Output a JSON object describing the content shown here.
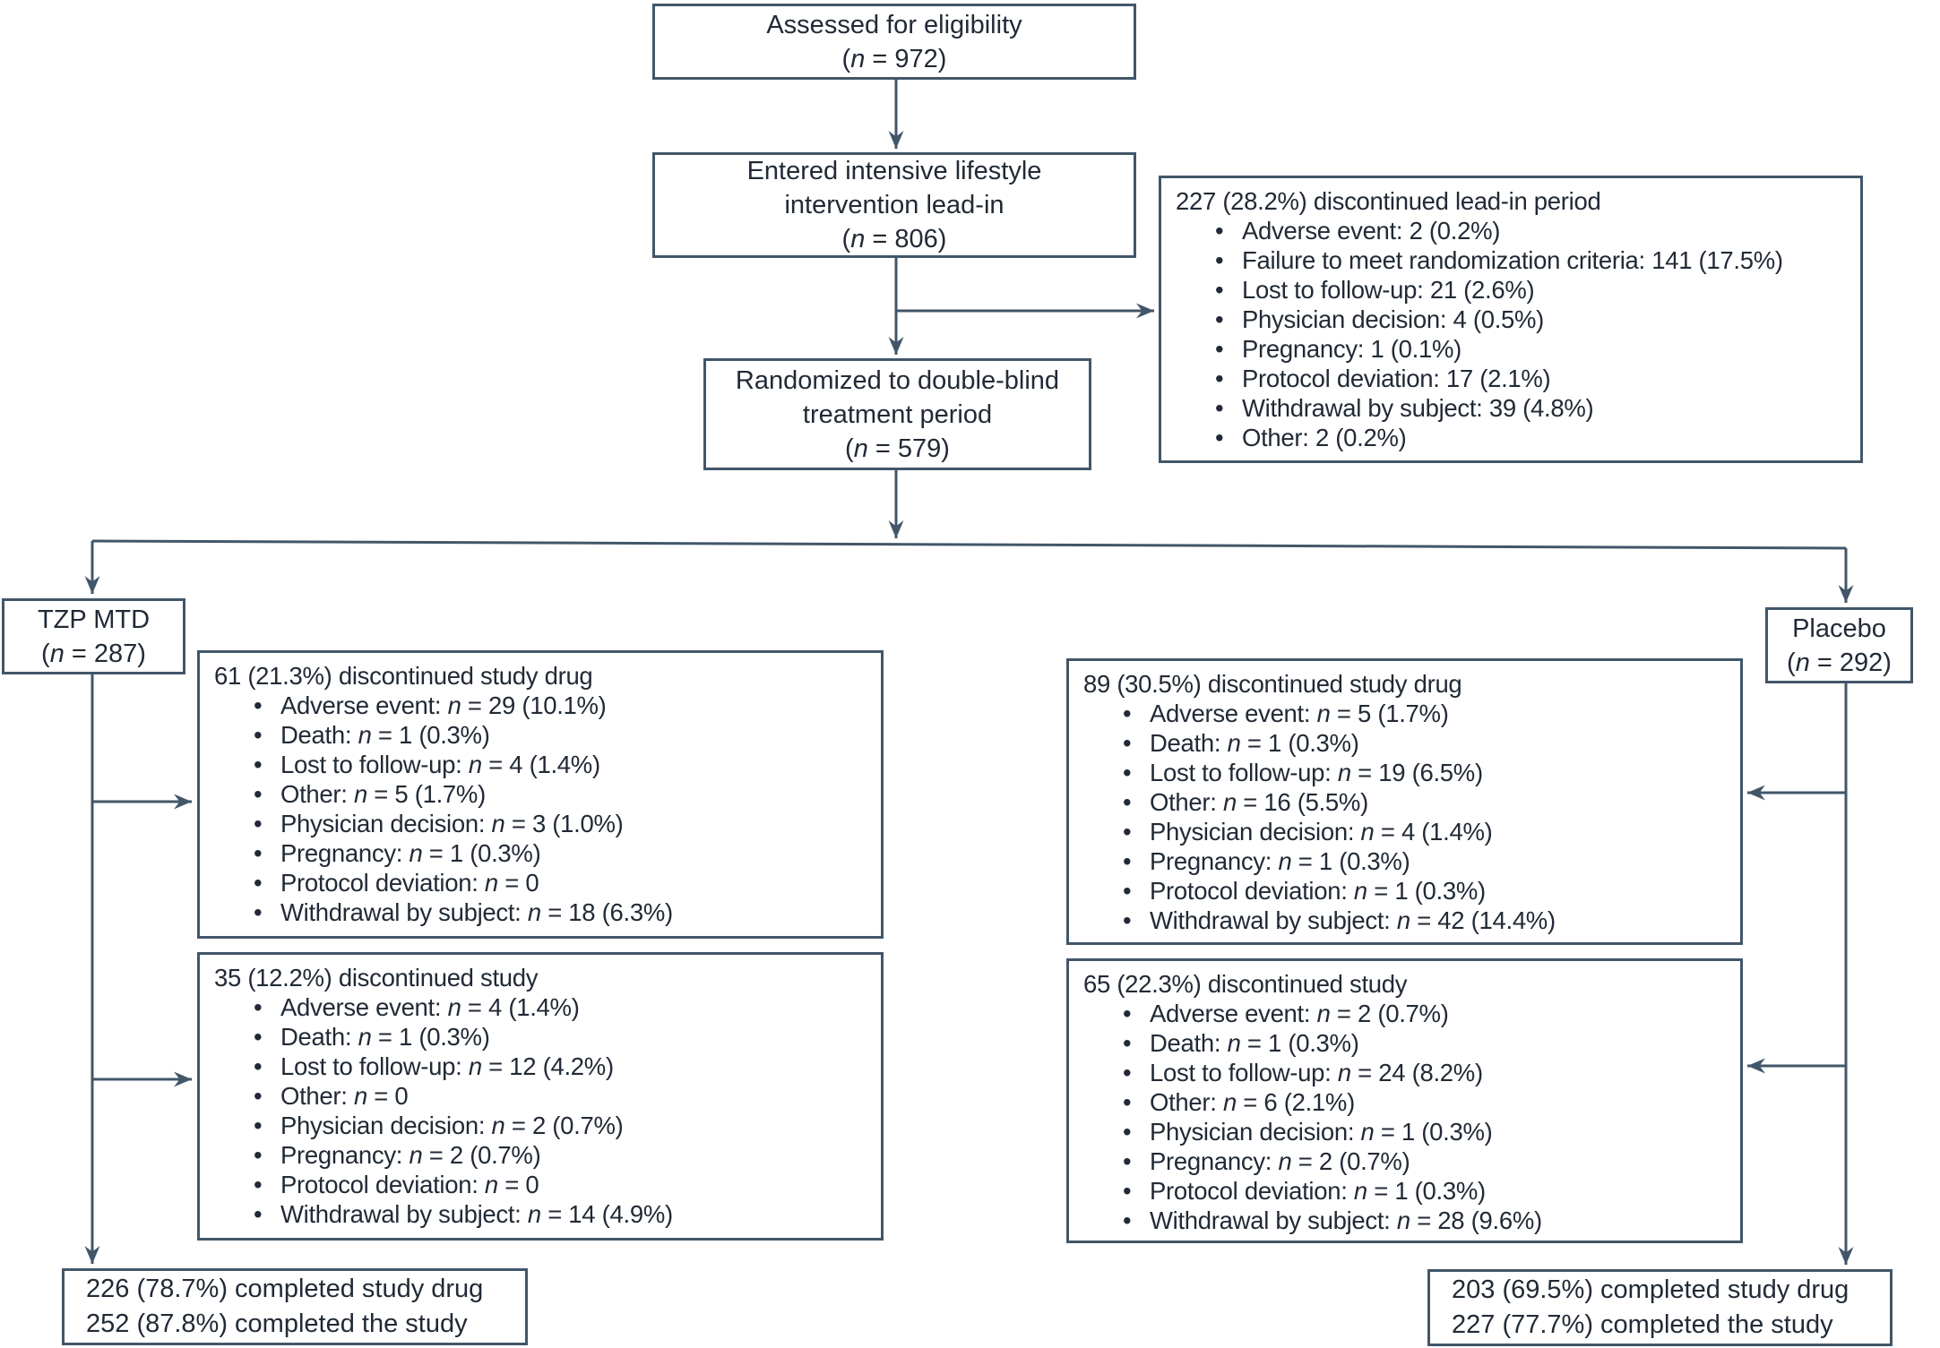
{
  "colors": {
    "line": "#425669",
    "text": "#212a36",
    "background": "#ffffff"
  },
  "boxes": {
    "assessed": {
      "lines": [
        "Assessed for eligibility",
        "(n = 972)"
      ]
    },
    "leadin": {
      "lines": [
        "Entered intensive lifestyle",
        "intervention lead-in",
        "(n = 806)"
      ]
    },
    "discontinued_leadin": {
      "header": "227 (28.2%) discontinued lead-in period",
      "items": [
        "Adverse event: 2 (0.2%)",
        "Failure to meet randomization criteria: 141 (17.5%)",
        "Lost to follow-up: 21 (2.6%)",
        "Physician decision: 4 (0.5%)",
        "Pregnancy: 1 (0.1%)",
        "Protocol deviation: 17 (2.1%)",
        "Withdrawal by subject: 39 (4.8%)",
        "Other: 2 (0.2%)"
      ]
    },
    "randomized": {
      "lines": [
        "Randomized to double-blind",
        "treatment period",
        "(n = 579)"
      ]
    },
    "tzp": {
      "lines": [
        "TZP MTD",
        "(n = 287)"
      ]
    },
    "placebo": {
      "lines": [
        "Placebo",
        "(n = 292)"
      ]
    },
    "tzp_disc_drug": {
      "header": "61 (21.3%) discontinued study drug",
      "items": [
        "Adverse event: n = 29 (10.1%)",
        "Death: n = 1 (0.3%)",
        "Lost to follow-up: n = 4 (1.4%)",
        "Other: n = 5 (1.7%)",
        "Physician decision: n = 3 (1.0%)",
        "Pregnancy: n = 1 (0.3%)",
        "Protocol deviation: n = 0",
        "Withdrawal by subject: n = 18 (6.3%)"
      ]
    },
    "tzp_disc_study": {
      "header": "35 (12.2%) discontinued study",
      "items": [
        "Adverse event: n = 4 (1.4%)",
        "Death: n = 1 (0.3%)",
        "Lost to follow-up: n = 12 (4.2%)",
        "Other: n = 0",
        "Physician decision: n = 2 (0.7%)",
        "Pregnancy: n = 2 (0.7%)",
        "Protocol deviation: n = 0",
        "Withdrawal by subject: n = 14 (4.9%)"
      ]
    },
    "placebo_disc_drug": {
      "header": "89 (30.5%) discontinued study drug",
      "items": [
        "Adverse event: n = 5 (1.7%)",
        "Death: n = 1 (0.3%)",
        "Lost to follow-up: n = 19 (6.5%)",
        "Other: n = 16 (5.5%)",
        "Physician decision: n = 4 (1.4%)",
        "Pregnancy: n = 1 (0.3%)",
        "Protocol deviation: n = 1 (0.3%)",
        "Withdrawal by subject: n = 42 (14.4%)"
      ]
    },
    "placebo_disc_study": {
      "header": "65 (22.3%) discontinued study",
      "items": [
        "Adverse event: n = 2 (0.7%)",
        "Death: n = 1 (0.3%)",
        "Lost to follow-up: n = 24 (8.2%)",
        "Other: n = 6 (2.1%)",
        "Physician decision: n = 1 (0.3%)",
        "Pregnancy: n = 2 (0.7%)",
        "Protocol deviation: n = 1 (0.3%)",
        "Withdrawal by subject: n = 28 (9.6%)"
      ]
    },
    "tzp_completed": {
      "lines": [
        "226 (78.7%) completed study drug",
        "252 (87.8%) completed the study"
      ]
    },
    "placebo_completed": {
      "lines": [
        "203 (69.5%) completed study drug",
        "227 (77.7%) completed the study"
      ]
    }
  }
}
